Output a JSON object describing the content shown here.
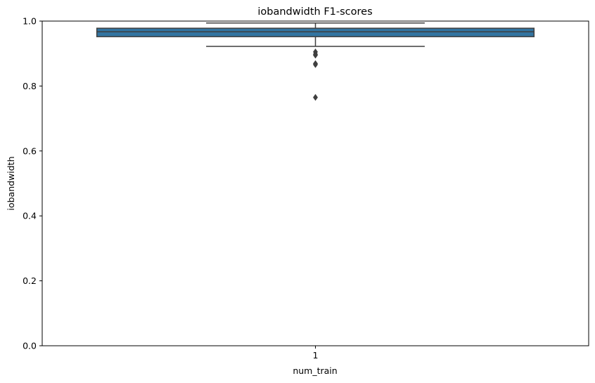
{
  "chart_data": {
    "type": "box",
    "title": "iobandwidth F1-scores",
    "xlabel": "num_train",
    "ylabel": "iobandwidth",
    "categories": [
      "1"
    ],
    "ylim": [
      0,
      1.0
    ],
    "yticks": [
      "0.0",
      "0.2",
      "0.4",
      "0.6",
      "0.8",
      "1.0"
    ],
    "ytick_values": [
      0,
      0.2,
      0.4,
      0.6,
      0.8,
      1.0
    ],
    "boxes": [
      {
        "category": "1",
        "whisker_low": 0.922,
        "q1": 0.952,
        "median": 0.967,
        "q3": 0.978,
        "whisker_high": 0.994,
        "outliers": [
          0.905,
          0.898,
          0.895,
          0.869,
          0.866,
          0.765
        ]
      }
    ],
    "grid": false,
    "box_color": "#3274a1",
    "line_color": "#3f3f3f"
  }
}
